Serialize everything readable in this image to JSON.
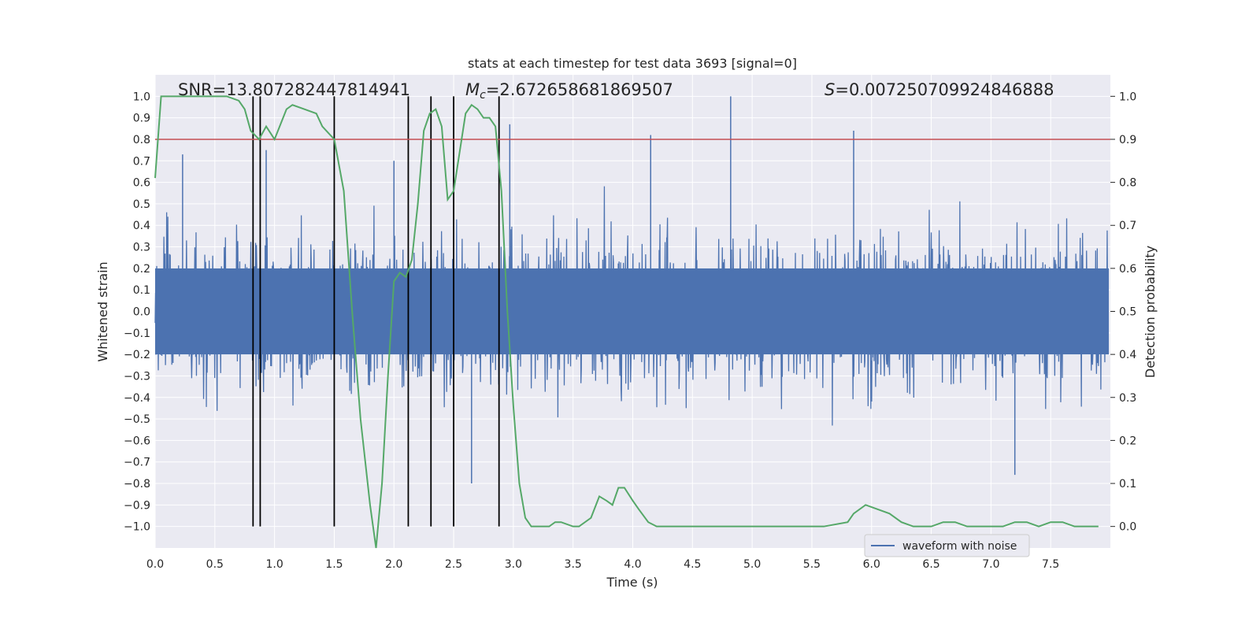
{
  "chart_data": {
    "type": "line",
    "title": "stats at each timestep for test data 3693 [signal=0]",
    "xlabel": "Time (s)",
    "ylabel": "Whitened strain",
    "ylabel_right": "Detection probability",
    "xlim": [
      0.0,
      8.0
    ],
    "ylim": [
      -1.1,
      1.1
    ],
    "ylim_right": [
      -0.05,
      1.05
    ],
    "grid": true,
    "legend_position": "lower-right",
    "x_ticks": [
      "0.0",
      "0.5",
      "1.0",
      "1.5",
      "2.0",
      "2.5",
      "3.0",
      "3.5",
      "4.0",
      "4.5",
      "5.0",
      "5.5",
      "6.0",
      "6.5",
      "7.0",
      "7.5"
    ],
    "y_ticks": [
      "1.0",
      "0.9",
      "0.8",
      "0.7",
      "0.6",
      "0.5",
      "0.4",
      "0.3",
      "0.2",
      "0.1",
      "0.0",
      "−0.1",
      "−0.2",
      "−0.3",
      "−0.4",
      "−0.5",
      "−0.6",
      "−0.7",
      "−0.8",
      "−0.9",
      "−1.0"
    ],
    "y_ticks_right": [
      "1.0",
      "0.9",
      "0.8",
      "0.7",
      "0.6",
      "0.5",
      "0.4",
      "0.3",
      "0.2",
      "0.1",
      "0.0"
    ],
    "annotations": {
      "snr": "SNR=13.807282447814941",
      "mc_symbol": "M",
      "mc_subscript": "c",
      "mc_value": "=2.672658681869507",
      "s_symbol": "S",
      "s_value": "=0.007250709924846888"
    },
    "series": [
      {
        "name": "waveform with noise",
        "axis": "left",
        "color": "#4c72b0",
        "style": "dense noise, envelope approx ±0.4, occasional peaks to ~0.75, max spike 1.0",
        "peaks": [
          {
            "x": 0.23,
            "y": 0.73
          },
          {
            "x": 0.93,
            "y": 0.75
          },
          {
            "x": 2.0,
            "y": 0.7
          },
          {
            "x": 2.65,
            "y": -0.8
          },
          {
            "x": 2.97,
            "y": 0.87
          },
          {
            "x": 4.15,
            "y": 0.82
          },
          {
            "x": 4.82,
            "y": 1.0
          },
          {
            "x": 5.85,
            "y": 0.84
          },
          {
            "x": 7.2,
            "y": -0.76
          }
        ]
      },
      {
        "name": "",
        "axis": "right",
        "color": "#55a868",
        "x": [
          0.0,
          0.05,
          0.1,
          0.2,
          0.3,
          0.4,
          0.5,
          0.6,
          0.7,
          0.75,
          0.8,
          0.87,
          0.93,
          1.0,
          1.1,
          1.15,
          1.25,
          1.35,
          1.4,
          1.5,
          1.58,
          1.65,
          1.72,
          1.8,
          1.85,
          1.9,
          1.95,
          2.0,
          2.05,
          2.1,
          2.15,
          2.2,
          2.25,
          2.3,
          2.35,
          2.4,
          2.45,
          2.5,
          2.55,
          2.6,
          2.65,
          2.7,
          2.75,
          2.8,
          2.85,
          2.9,
          2.95,
          3.0,
          3.05,
          3.1,
          3.15,
          3.2,
          3.25,
          3.3,
          3.35,
          3.4,
          3.5,
          3.55,
          3.65,
          3.72,
          3.78,
          3.83,
          3.88,
          3.93,
          4.0,
          4.05,
          4.13,
          4.2,
          4.3,
          4.35,
          4.4,
          4.5,
          4.6,
          4.8,
          5.0,
          5.3,
          5.6,
          5.8,
          5.85,
          5.95,
          6.05,
          6.15,
          6.25,
          6.35,
          6.5,
          6.6,
          6.7,
          6.8,
          6.9,
          7.0,
          7.1,
          7.2,
          7.3,
          7.4,
          7.5,
          7.6,
          7.7,
          7.8,
          7.9
        ],
        "values": [
          0.81,
          1.0,
          1.0,
          1.0,
          1.0,
          1.0,
          1.0,
          1.0,
          0.99,
          0.97,
          0.92,
          0.9,
          0.93,
          0.9,
          0.97,
          0.98,
          0.97,
          0.96,
          0.93,
          0.9,
          0.78,
          0.5,
          0.25,
          0.05,
          -0.05,
          0.1,
          0.35,
          0.57,
          0.59,
          0.58,
          0.62,
          0.75,
          0.92,
          0.96,
          0.97,
          0.93,
          0.76,
          0.78,
          0.87,
          0.96,
          0.98,
          0.97,
          0.95,
          0.95,
          0.93,
          0.78,
          0.5,
          0.28,
          0.1,
          0.02,
          0.0,
          0.0,
          0.0,
          0.0,
          0.01,
          0.01,
          0.0,
          0.0,
          0.02,
          0.07,
          0.06,
          0.05,
          0.09,
          0.09,
          0.06,
          0.04,
          0.01,
          0.0,
          0.0,
          0.0,
          0.0,
          0.0,
          0.0,
          0.0,
          0.0,
          0.0,
          0.0,
          0.01,
          0.03,
          0.05,
          0.04,
          0.03,
          0.01,
          0.0,
          0.0,
          0.01,
          0.01,
          0.0,
          0.0,
          0.0,
          0.0,
          0.01,
          0.01,
          0.0,
          0.01,
          0.01,
          0.0,
          0.0,
          0.0
        ]
      }
    ],
    "threshold_line": {
      "axis": "right",
      "y": 0.9,
      "color": "#c44e52"
    },
    "vertical_lines": {
      "color": "#000000",
      "x": [
        0.82,
        0.88,
        1.5,
        2.12,
        2.31,
        2.5,
        2.88
      ],
      "y_range_right": [
        0.0,
        1.0
      ]
    }
  }
}
